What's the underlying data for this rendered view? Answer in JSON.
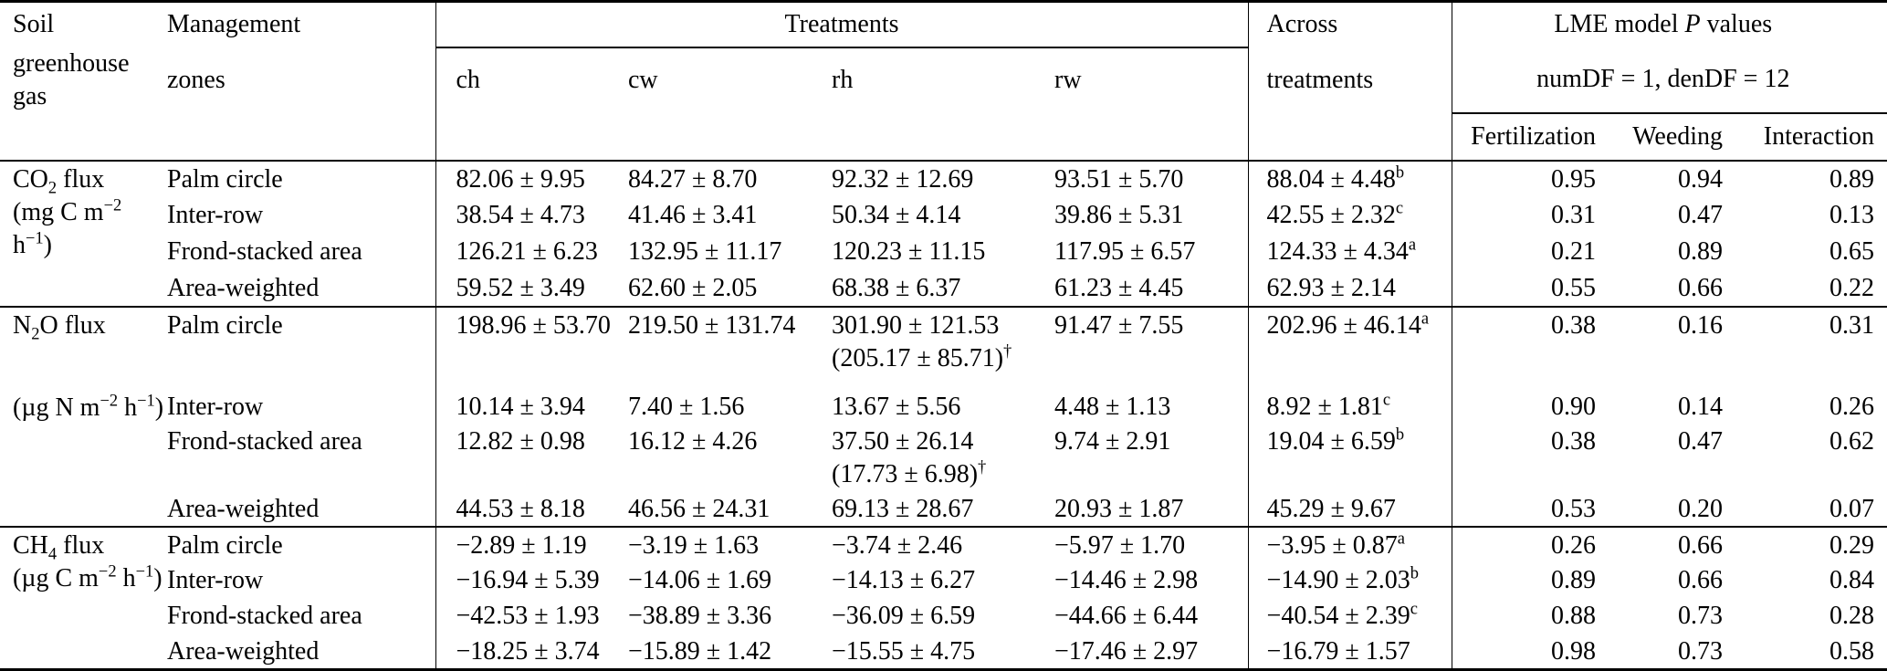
{
  "header": {
    "soil_line1": "Soil",
    "soil_line2": "greenhouse gas",
    "mgmt_line1": "Management",
    "mgmt_line2": "zones",
    "treatments_group": "Treatments",
    "treatment_cols": [
      "ch",
      "cw",
      "rh",
      "rw"
    ],
    "across_line1": "Across",
    "across_line2": "treatments",
    "lme_title": "LME model *P* values",
    "lme_sub": "numDF = 1, denDF = 12",
    "p_cols": [
      "Fertilization",
      "Weeding",
      "Interaction"
    ]
  },
  "sections": [
    {
      "gas": "CO_{2} flux",
      "unit": "(mg C m^{−2} h^{−1})",
      "rows": [
        {
          "zone": "Palm circle",
          "ch": "82.06 ± 9.95",
          "cw": "84.27 ± 8.70",
          "rh": "92.32 ± 12.69",
          "rw": "93.51 ± 5.70",
          "across": "88.04 ± 4.48^{b}",
          "p_fert": "0.95",
          "p_weed": "0.94",
          "p_int": "0.89"
        },
        {
          "zone": "Inter-row",
          "ch": "38.54 ± 4.73",
          "cw": "41.46 ± 3.41",
          "rh": "50.34 ± 4.14",
          "rw": "39.86 ± 5.31",
          "across": "42.55 ± 2.32^{c}",
          "p_fert": "0.31",
          "p_weed": "0.47",
          "p_int": "0.13"
        },
        {
          "zone": "Frond-stacked area",
          "ch": "126.21 ± 6.23",
          "cw": "132.95 ± 11.17",
          "rh": "120.23 ± 11.15",
          "rw": "117.95 ± 6.57",
          "across": "124.33 ± 4.34^{a}",
          "p_fert": "0.21",
          "p_weed": "0.89",
          "p_int": "0.65"
        },
        {
          "zone": "Area-weighted",
          "ch": "59.52 ± 3.49",
          "cw": "62.60 ± 2.05",
          "rh": "68.38 ± 6.37",
          "rw": "61.23 ± 4.45",
          "across": "62.93 ± 2.14",
          "p_fert": "0.55",
          "p_weed": "0.66",
          "p_int": "0.22"
        }
      ]
    },
    {
      "gas": "N_{2}O flux",
      "unit": "(µg N m^{−2} h^{−1})",
      "rows": [
        {
          "zone": "Palm circle",
          "ch": "198.96 ± 53.70",
          "cw": "219.50 ± 131.74",
          "rh": "301.90 ± 121.53",
          "rh_note": "(205.17 ± 85.71)^{†}",
          "rw": "91.47 ± 7.55",
          "across": "202.96 ± 46.14^{a}",
          "p_fert": "0.38",
          "p_weed": "0.16",
          "p_int": "0.31"
        },
        {
          "zone": "Inter-row",
          "ch": "10.14 ± 3.94",
          "cw": "7.40 ± 1.56",
          "rh": "13.67 ± 5.56",
          "rw": "4.48 ± 1.13",
          "across": "8.92 ± 1.81^{c}",
          "p_fert": "0.90",
          "p_weed": "0.14",
          "p_int": "0.26"
        },
        {
          "zone": "Frond-stacked area",
          "ch": "12.82 ± 0.98",
          "cw": "16.12 ± 4.26",
          "rh": "37.50 ± 26.14",
          "rh_note": "(17.73 ± 6.98)^{†}",
          "rw": "9.74 ± 2.91",
          "across": "19.04 ± 6.59^{b}",
          "p_fert": "0.38",
          "p_weed": "0.47",
          "p_int": "0.62"
        },
        {
          "zone": "Area-weighted",
          "ch": "44.53 ± 8.18",
          "cw": "46.56 ± 24.31",
          "rh": "69.13 ± 28.67",
          "rw": "20.93 ± 1.87",
          "across": "45.29 ± 9.67",
          "p_fert": "0.53",
          "p_weed": "0.20",
          "p_int": "0.07"
        }
      ]
    },
    {
      "gas": "CH_{4} flux",
      "unit": "(µg C m^{−2} h^{−1})",
      "rows": [
        {
          "zone": "Palm circle",
          "ch": "−2.89 ± 1.19",
          "cw": "−3.19 ± 1.63",
          "rh": "−3.74 ± 2.46",
          "rw": "−5.97 ± 1.70",
          "across": "−3.95 ± 0.87^{a}",
          "p_fert": "0.26",
          "p_weed": "0.66",
          "p_int": "0.29"
        },
        {
          "zone": "Inter-row",
          "ch": "−16.94 ± 5.39",
          "cw": "−14.06 ± 1.69",
          "rh": "−14.13 ± 6.27",
          "rw": "−14.46 ± 2.98",
          "across": "−14.90 ± 2.03^{b}",
          "p_fert": "0.89",
          "p_weed": "0.66",
          "p_int": "0.84"
        },
        {
          "zone": "Frond-stacked area",
          "ch": "−42.53 ± 1.93",
          "cw": "−38.89 ± 3.36",
          "rh": "−36.09 ± 6.59",
          "rw": "−44.66 ± 6.44",
          "across": "−40.54 ± 2.39^{c}",
          "p_fert": "0.88",
          "p_weed": "0.73",
          "p_int": "0.28"
        },
        {
          "zone": "Area-weighted",
          "ch": "−18.25 ± 3.74",
          "cw": "−15.89 ± 1.42",
          "rh": "−15.55 ± 4.75",
          "rw": "−17.46 ± 2.97",
          "across": "−16.79 ± 1.57",
          "p_fert": "0.98",
          "p_weed": "0.73",
          "p_int": "0.58"
        }
      ]
    }
  ]
}
